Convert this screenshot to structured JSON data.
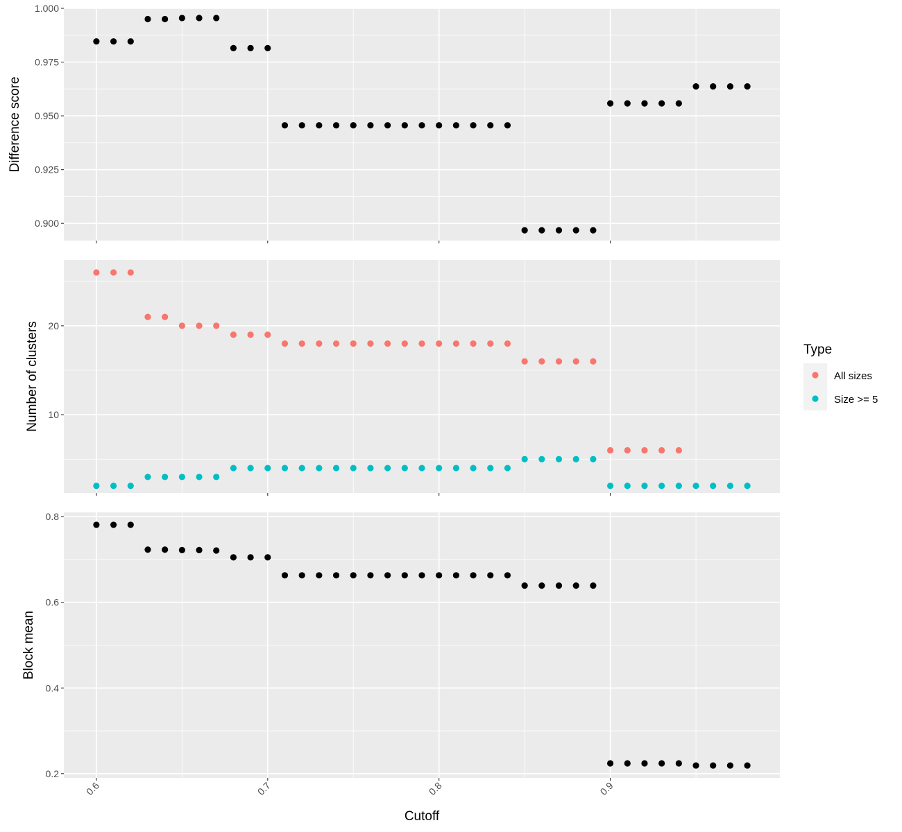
{
  "chart_data": [
    {
      "type": "scatter",
      "id": "difference",
      "ylabel": "Difference score",
      "ylim": [
        0.892,
        1.0
      ],
      "yticks": [
        0.9,
        0.925,
        0.95,
        0.975,
        1.0
      ],
      "ytick_labels": [
        "0.900",
        "0.925",
        "0.950",
        "0.975",
        "1.000"
      ],
      "series": [
        {
          "color": "#000000",
          "x": [
            0.6,
            0.61,
            0.62,
            0.63,
            0.64,
            0.65,
            0.66,
            0.67,
            0.68,
            0.69,
            0.7,
            0.71,
            0.72,
            0.73,
            0.74,
            0.75,
            0.76,
            0.77,
            0.78,
            0.79,
            0.8,
            0.81,
            0.82,
            0.83,
            0.84,
            0.85,
            0.86,
            0.87,
            0.88,
            0.89,
            0.9,
            0.91,
            0.92,
            0.93,
            0.94,
            0.95,
            0.96,
            0.97,
            0.98
          ],
          "y": [
            0.9846,
            0.9846,
            0.9846,
            0.995,
            0.995,
            0.9955,
            0.9955,
            0.9955,
            0.9815,
            0.9815,
            0.9815,
            0.9456,
            0.9456,
            0.9456,
            0.9456,
            0.9456,
            0.9456,
            0.9456,
            0.9456,
            0.9456,
            0.9456,
            0.9456,
            0.9456,
            0.9456,
            0.9456,
            0.8968,
            0.8968,
            0.8968,
            0.8968,
            0.8968,
            0.9558,
            0.9558,
            0.9558,
            0.9558,
            0.9558,
            0.9637,
            0.9637,
            0.9637,
            0.9637
          ]
        }
      ]
    },
    {
      "type": "scatter",
      "id": "clusters",
      "ylabel": "Number of clusters",
      "ylim": [
        1.2,
        27.4
      ],
      "yticks": [
        10,
        20
      ],
      "ytick_labels": [
        "10",
        "20"
      ],
      "minor_yticks": [
        5,
        15,
        25
      ],
      "legend": {
        "title": "Type",
        "placement": "right",
        "entries": [
          {
            "label": "All sizes",
            "color": "#F8766D"
          },
          {
            "label": "Size >= 5",
            "color": "#00BFC4"
          }
        ]
      },
      "series": [
        {
          "name": "All sizes",
          "color": "#F8766D",
          "x": [
            0.6,
            0.61,
            0.62,
            0.63,
            0.64,
            0.65,
            0.66,
            0.67,
            0.68,
            0.69,
            0.7,
            0.71,
            0.72,
            0.73,
            0.74,
            0.75,
            0.76,
            0.77,
            0.78,
            0.79,
            0.8,
            0.81,
            0.82,
            0.83,
            0.84,
            0.85,
            0.86,
            0.87,
            0.88,
            0.89,
            0.9,
            0.91,
            0.92,
            0.93,
            0.94
          ],
          "y": [
            26,
            26,
            26,
            21,
            21,
            20,
            20,
            20,
            19,
            19,
            19,
            18,
            18,
            18,
            18,
            18,
            18,
            18,
            18,
            18,
            18,
            18,
            18,
            18,
            18,
            16,
            16,
            16,
            16,
            16,
            6,
            6,
            6,
            6,
            6
          ]
        },
        {
          "name": "Size >= 5",
          "color": "#00BFC4",
          "x": [
            0.6,
            0.61,
            0.62,
            0.63,
            0.64,
            0.65,
            0.66,
            0.67,
            0.68,
            0.69,
            0.7,
            0.71,
            0.72,
            0.73,
            0.74,
            0.75,
            0.76,
            0.77,
            0.78,
            0.79,
            0.8,
            0.81,
            0.82,
            0.83,
            0.84,
            0.85,
            0.86,
            0.87,
            0.88,
            0.89,
            0.9,
            0.91,
            0.92,
            0.93,
            0.94,
            0.95,
            0.96,
            0.97,
            0.98
          ],
          "y": [
            2,
            2,
            2,
            3,
            3,
            3,
            3,
            3,
            4,
            4,
            4,
            4,
            4,
            4,
            4,
            4,
            4,
            4,
            4,
            4,
            4,
            4,
            4,
            4,
            4,
            5,
            5,
            5,
            5,
            5,
            2,
            2,
            2,
            2,
            2,
            2,
            2,
            2,
            2
          ]
        }
      ]
    },
    {
      "type": "scatter",
      "id": "blockmean",
      "ylabel": "Block mean",
      "xlabel": "Cutoff",
      "ylim": [
        0.19,
        0.81
      ],
      "yticks": [
        0.2,
        0.4,
        0.6,
        0.8
      ],
      "ytick_labels": [
        "0.2",
        "0.4",
        "0.6",
        "0.8"
      ],
      "series": [
        {
          "color": "#000000",
          "x": [
            0.6,
            0.61,
            0.62,
            0.63,
            0.64,
            0.65,
            0.66,
            0.67,
            0.68,
            0.69,
            0.7,
            0.71,
            0.72,
            0.73,
            0.74,
            0.75,
            0.76,
            0.77,
            0.78,
            0.79,
            0.8,
            0.81,
            0.82,
            0.83,
            0.84,
            0.85,
            0.86,
            0.87,
            0.88,
            0.89,
            0.9,
            0.91,
            0.92,
            0.93,
            0.94,
            0.95,
            0.96,
            0.97,
            0.98
          ],
          "y": [
            0.781,
            0.781,
            0.781,
            0.723,
            0.723,
            0.722,
            0.722,
            0.721,
            0.705,
            0.705,
            0.705,
            0.663,
            0.663,
            0.663,
            0.663,
            0.663,
            0.663,
            0.663,
            0.663,
            0.663,
            0.663,
            0.663,
            0.663,
            0.663,
            0.663,
            0.639,
            0.639,
            0.639,
            0.639,
            0.639,
            0.224,
            0.224,
            0.224,
            0.224,
            0.224,
            0.219,
            0.219,
            0.219,
            0.219
          ]
        }
      ]
    }
  ],
  "x_axis": {
    "label": "Cutoff",
    "xlim": [
      0.581,
      0.999
    ],
    "ticks": [
      0.6,
      0.7,
      0.8,
      0.9
    ],
    "tick_labels": [
      "0.6",
      "0.7",
      "0.8",
      "0.9"
    ],
    "minor_ticks": [
      0.65,
      0.75,
      0.85,
      0.95
    ]
  },
  "colors": {
    "panel_background": "#EBEBEB",
    "grid": "#FFFFFF",
    "legend_key_background": "#F2F2F2"
  }
}
